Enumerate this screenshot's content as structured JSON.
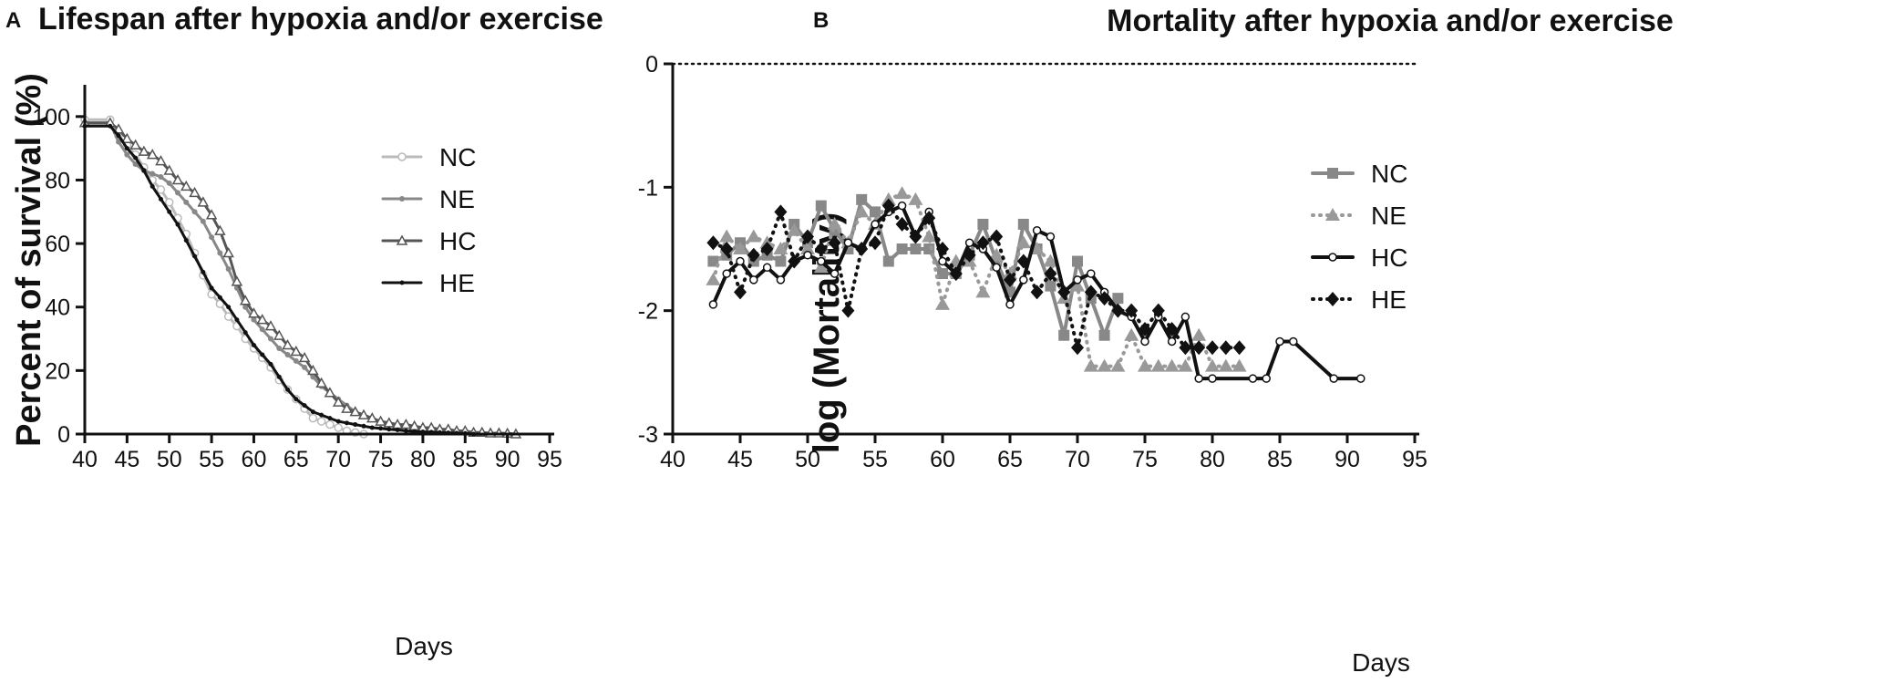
{
  "chart_data": [
    {
      "panel_label": "A",
      "type": "line",
      "title": "Lifespan after hypoxia and/or exercise",
      "xlabel": "Days",
      "ylabel": "Percent of survival (%)",
      "xlim": [
        40,
        95
      ],
      "ylim": [
        0,
        110
      ],
      "xticks": [
        "40",
        "45",
        "50",
        "55",
        "60",
        "65",
        "70",
        "75",
        "80",
        "85",
        "90",
        "95"
      ],
      "yticks": [
        "0",
        "20",
        "40",
        "60",
        "80",
        "100"
      ],
      "legend_position": "right",
      "series": [
        {
          "name": "NC",
          "color": "#bbbbbb",
          "marker": "open-circle",
          "x": [
            40,
            43,
            44,
            45,
            46,
            47,
            48,
            49,
            50,
            51,
            52,
            53,
            54,
            55,
            56,
            57,
            58,
            59,
            60,
            61,
            62,
            63,
            64,
            65,
            66,
            67,
            68,
            69,
            70,
            71,
            72,
            73
          ],
          "y": [
            99,
            99,
            94,
            91,
            88,
            84,
            80,
            77,
            73,
            68,
            63,
            57,
            50,
            44,
            41,
            37,
            34,
            30,
            27,
            24,
            21,
            17,
            14,
            11,
            8,
            5,
            4,
            3,
            2,
            1,
            0.5,
            0
          ]
        },
        {
          "name": "NE",
          "color": "#888888",
          "marker": "filled-circle",
          "x": [
            40,
            43,
            44,
            45,
            46,
            47,
            48,
            49,
            50,
            51,
            52,
            53,
            54,
            55,
            56,
            57,
            58,
            59,
            60,
            61,
            62,
            63,
            64,
            65,
            66,
            67,
            68,
            69,
            70,
            71,
            72,
            73,
            74,
            75,
            76,
            77,
            78,
            79,
            80,
            81,
            82,
            83,
            84,
            85,
            86,
            87
          ],
          "y": [
            98,
            98,
            92,
            88,
            85,
            83,
            82,
            81,
            79,
            76,
            73,
            70,
            67,
            62,
            57,
            52,
            46,
            40,
            36,
            33,
            30,
            27,
            25,
            23,
            21,
            18,
            15,
            13,
            11,
            9,
            7,
            6,
            5,
            4,
            3.5,
            3,
            2.5,
            2,
            2,
            1.5,
            1.2,
            1,
            0.8,
            0.5,
            0.2,
            0
          ]
        },
        {
          "name": "HC",
          "color": "#555555",
          "marker": "open-triangle",
          "x": [
            40,
            43,
            44,
            45,
            46,
            47,
            48,
            49,
            50,
            51,
            52,
            53,
            54,
            55,
            56,
            57,
            58,
            59,
            60,
            61,
            62,
            63,
            64,
            65,
            66,
            67,
            68,
            69,
            70,
            71,
            72,
            73,
            74,
            75,
            76,
            77,
            78,
            79,
            80,
            81,
            82,
            83,
            84,
            85,
            86,
            87,
            88,
            89,
            90,
            91
          ],
          "y": [
            98,
            98,
            96,
            93,
            91,
            89,
            88,
            86,
            83,
            80,
            78,
            76,
            73,
            69,
            64,
            57,
            48,
            42,
            38,
            36,
            34,
            31,
            28,
            26,
            24,
            20,
            16,
            13,
            10,
            8,
            7,
            6,
            5,
            4,
            3.5,
            3,
            3,
            2.5,
            2,
            2,
            1.5,
            1.5,
            1,
            1,
            0.5,
            0.5,
            0.3,
            0.3,
            0.2,
            0
          ]
        },
        {
          "name": "HE",
          "color": "#111111",
          "marker": "small-filled",
          "x": [
            40,
            43,
            44,
            45,
            46,
            47,
            48,
            49,
            50,
            51,
            52,
            53,
            54,
            55,
            56,
            57,
            58,
            59,
            60,
            61,
            62,
            63,
            64,
            65,
            66,
            67,
            68,
            69,
            70,
            71,
            72,
            73,
            74,
            75,
            76,
            77,
            78,
            79,
            80,
            81,
            82,
            83,
            84,
            85,
            86
          ],
          "y": [
            97,
            97,
            94,
            90,
            87,
            83,
            78,
            74,
            70,
            66,
            61,
            56,
            51,
            46,
            43,
            40,
            36,
            32,
            28,
            25,
            22,
            18,
            14,
            11,
            9,
            7,
            6,
            5,
            4,
            3.5,
            3,
            2.5,
            2,
            1.8,
            1.5,
            1.3,
            1,
            0.8,
            0.7,
            0.6,
            0.5,
            0.4,
            0.3,
            0.2,
            0
          ]
        }
      ]
    },
    {
      "panel_label": "B",
      "type": "line",
      "title": "Mortality after hypoxia and/or exercise",
      "xlabel": "Days",
      "ylabel": "log (Mortality)",
      "xlim": [
        40,
        95
      ],
      "ylim": [
        -3,
        0
      ],
      "xticks": [
        "40",
        "45",
        "50",
        "55",
        "60",
        "65",
        "70",
        "75",
        "80",
        "85",
        "90",
        "95"
      ],
      "yticks": [
        "0",
        "-1",
        "-2",
        "-3"
      ],
      "reference_line": 0,
      "legend_position": "right",
      "series": [
        {
          "name": "NC",
          "color": "#888888",
          "marker": "square",
          "dash": "solid",
          "x": [
            43,
            44,
            45,
            46,
            47,
            48,
            49,
            50,
            51,
            52,
            53,
            54,
            55,
            56,
            57,
            58,
            59,
            60,
            61,
            62,
            63,
            64,
            65,
            66,
            67,
            68,
            69,
            70,
            71,
            72,
            73
          ],
          "y": [
            -1.6,
            -1.55,
            -1.45,
            -1.6,
            -1.55,
            -1.6,
            -1.3,
            -1.45,
            -1.15,
            -1.35,
            -1.5,
            -1.1,
            -1.2,
            -1.6,
            -1.5,
            -1.5,
            -1.5,
            -1.7,
            -1.7,
            -1.55,
            -1.3,
            -1.6,
            -1.85,
            -1.3,
            -1.5,
            -1.8,
            -2.2,
            -1.6,
            -1.9,
            -2.2,
            -1.9
          ]
        },
        {
          "name": "NE",
          "color": "#999999",
          "marker": "triangle",
          "dash": "dotted",
          "x": [
            43,
            44,
            45,
            46,
            47,
            48,
            49,
            50,
            51,
            52,
            53,
            54,
            55,
            56,
            57,
            58,
            59,
            60,
            61,
            62,
            63,
            64,
            65,
            66,
            67,
            68,
            69,
            70,
            71,
            72,
            73,
            74,
            75,
            76,
            77,
            78,
            79,
            80,
            81,
            82
          ],
          "y": [
            -1.75,
            -1.4,
            -1.5,
            -1.4,
            -1.45,
            -1.5,
            -1.35,
            -1.5,
            -1.65,
            -1.3,
            -1.45,
            -1.2,
            -1.3,
            -1.1,
            -1.05,
            -1.1,
            -1.4,
            -1.95,
            -1.6,
            -1.6,
            -1.85,
            -1.55,
            -1.7,
            -1.45,
            -1.5,
            -1.6,
            -1.9,
            -1.8,
            -2.45,
            -2.45,
            -2.45,
            -2.2,
            -2.45,
            -2.45,
            -2.45,
            -2.45,
            -2.2,
            -2.45,
            -2.45,
            -2.45
          ]
        },
        {
          "name": "HC",
          "color": "#111111",
          "marker": "open-circle",
          "dash": "solid",
          "x": [
            43,
            44,
            45,
            46,
            47,
            48,
            49,
            50,
            51,
            52,
            53,
            54,
            55,
            56,
            57,
            58,
            59,
            60,
            61,
            62,
            63,
            64,
            65,
            66,
            67,
            68,
            69,
            70,
            71,
            72,
            73,
            74,
            75,
            76,
            77,
            78,
            79,
            80,
            83,
            84,
            85,
            86,
            89,
            91
          ],
          "y": [
            -1.95,
            -1.7,
            -1.6,
            -1.75,
            -1.65,
            -1.75,
            -1.6,
            -1.55,
            -1.6,
            -1.7,
            -1.45,
            -1.5,
            -1.3,
            -1.2,
            -1.15,
            -1.4,
            -1.2,
            -1.6,
            -1.7,
            -1.45,
            -1.5,
            -1.65,
            -1.95,
            -1.75,
            -1.35,
            -1.4,
            -1.85,
            -1.75,
            -1.7,
            -1.85,
            -2.0,
            -2.05,
            -2.25,
            -2.05,
            -2.25,
            -2.05,
            -2.55,
            -2.55,
            -2.55,
            -2.55,
            -2.25,
            -2.25,
            -2.55,
            -2.55
          ]
        },
        {
          "name": "HE",
          "color": "#111111",
          "marker": "diamond",
          "dash": "dotted",
          "x": [
            43,
            44,
            45,
            46,
            47,
            48,
            49,
            50,
            51,
            52,
            53,
            54,
            55,
            56,
            57,
            58,
            59,
            60,
            61,
            62,
            63,
            64,
            65,
            66,
            67,
            68,
            69,
            70,
            71,
            72,
            73,
            74,
            75,
            76,
            77,
            78,
            79,
            80,
            81,
            82
          ],
          "y": [
            -1.45,
            -1.5,
            -1.85,
            -1.55,
            -1.5,
            -1.2,
            -1.6,
            -1.4,
            -1.5,
            -1.45,
            -2.0,
            -1.5,
            -1.45,
            -1.15,
            -1.3,
            -1.4,
            -1.25,
            -1.5,
            -1.7,
            -1.55,
            -1.45,
            -1.4,
            -1.75,
            -1.6,
            -1.85,
            -1.7,
            -1.85,
            -2.3,
            -1.85,
            -1.9,
            -2.0,
            -2.0,
            -2.15,
            -2.0,
            -2.15,
            -2.3,
            -2.3,
            -2.3,
            -2.3,
            -2.3
          ]
        }
      ]
    }
  ]
}
